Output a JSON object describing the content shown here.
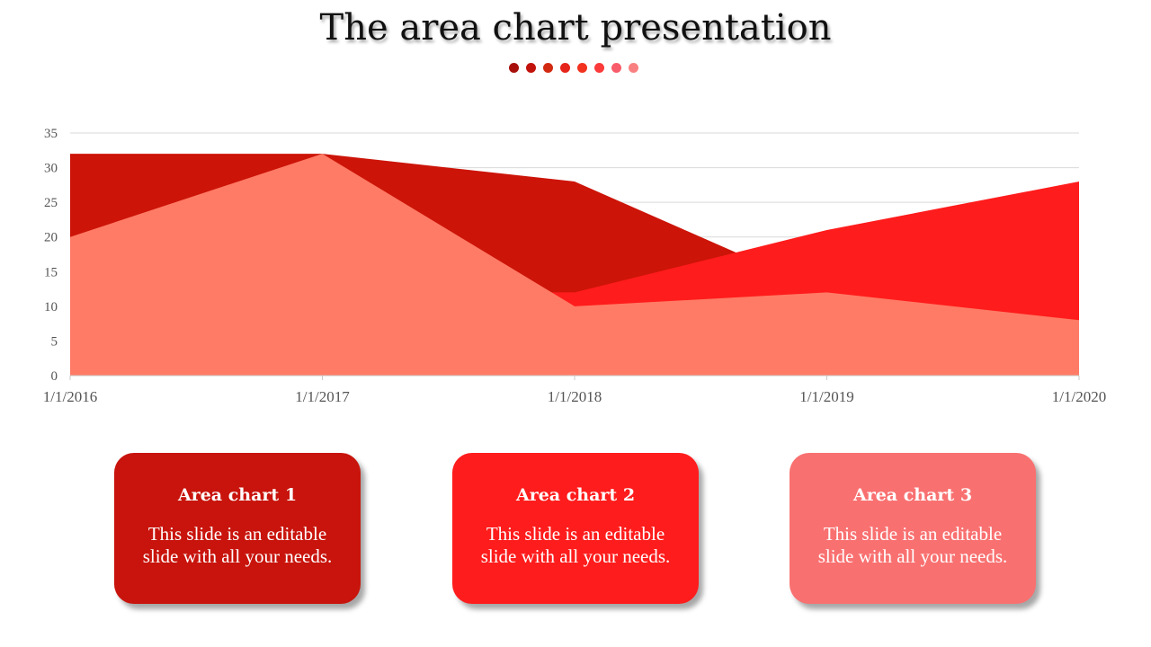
{
  "title": "The area chart presentation",
  "dots": [
    "#a80f0a",
    "#c1130c",
    "#d22a10",
    "#e6241a",
    "#f2321f",
    "#fb3a3a",
    "#f85c6a",
    "#f98080"
  ],
  "chart_data": {
    "type": "area",
    "categories": [
      "1/1/2016",
      "1/1/2017",
      "1/1/2018",
      "1/1/2019",
      "1/1/2020"
    ],
    "ylim": [
      0,
      35
    ],
    "yticks": [
      "0",
      "5",
      "10",
      "15",
      "20",
      "25",
      "30",
      "35"
    ],
    "grid": true,
    "series": [
      {
        "values": [
          32,
          32,
          28,
          12,
          8
        ],
        "color": "#cc1408"
      },
      {
        "values": [
          12,
          12,
          12,
          21,
          28
        ],
        "color": "#ff1c1c"
      },
      {
        "values": [
          20,
          32,
          10,
          12,
          8
        ],
        "color": "#ff7b66"
      }
    ]
  },
  "cards": [
    {
      "title": "Area chart 1",
      "body": "This slide is an editable slide with all your needs.",
      "color": "#c8140c"
    },
    {
      "title": "Area chart 2",
      "body": "This slide is an editable slide with all your needs.",
      "color": "#ff1c1c"
    },
    {
      "title": "Area chart 3",
      "body": "This slide is an editable slide with all your needs.",
      "color": "#f97070"
    }
  ]
}
